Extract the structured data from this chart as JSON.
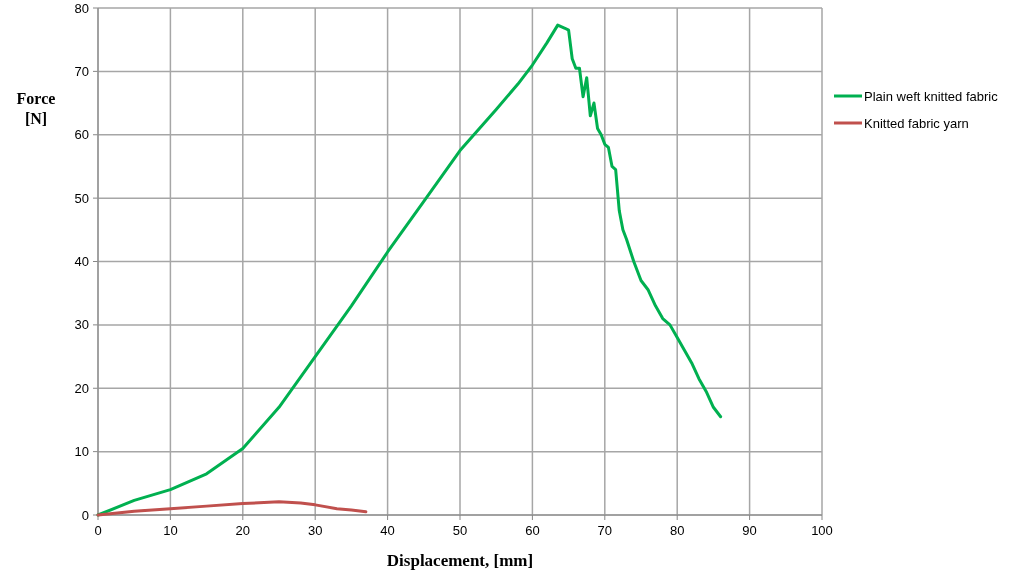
{
  "chart_data": {
    "type": "line",
    "xlabel": "Displacement, [mm]",
    "ylabel": "Force [N]",
    "xlim": [
      0,
      100
    ],
    "ylim": [
      0,
      80
    ],
    "xticks": [
      0,
      10,
      20,
      30,
      40,
      50,
      60,
      70,
      80,
      90,
      100
    ],
    "yticks": [
      0,
      10,
      20,
      30,
      40,
      50,
      60,
      70,
      80
    ],
    "grid": true,
    "legend": "right",
    "line_style": "solid",
    "series": [
      {
        "name": "Plain weft knitted fabric",
        "color": "#00b050",
        "x": [
          0,
          5,
          10,
          15,
          20,
          25,
          30,
          35,
          40,
          45,
          50,
          55,
          58,
          60,
          62,
          63.5,
          64.5,
          65,
          65.5,
          66,
          66.5,
          67,
          67.5,
          68,
          68.5,
          69,
          69.5,
          70,
          70.5,
          71,
          71.5,
          72,
          72.5,
          73,
          74,
          75,
          76,
          77,
          78,
          79,
          80,
          81,
          82,
          83,
          84,
          85,
          86
        ],
        "values": [
          0,
          2.3,
          4,
          6.5,
          10.5,
          17,
          25,
          33,
          41.5,
          49.5,
          57.5,
          64,
          68,
          71,
          74.5,
          77.3,
          76.8,
          76.5,
          72,
          70.5,
          70.5,
          66,
          69,
          63,
          65,
          61,
          60,
          58.5,
          58,
          55,
          54.5,
          48,
          45,
          43.5,
          40,
          37,
          35.5,
          33,
          31,
          30,
          28,
          26,
          24,
          21.5,
          19.5,
          17,
          15.5
        ]
      },
      {
        "name": "Knitted fabric yarn",
        "color": "#c0504d",
        "x": [
          0,
          5,
          10,
          15,
          20,
          25,
          28,
          30,
          33,
          35,
          37
        ],
        "values": [
          0,
          0.6,
          1,
          1.4,
          1.8,
          2.1,
          1.9,
          1.6,
          1,
          0.8,
          0.5
        ]
      }
    ]
  }
}
